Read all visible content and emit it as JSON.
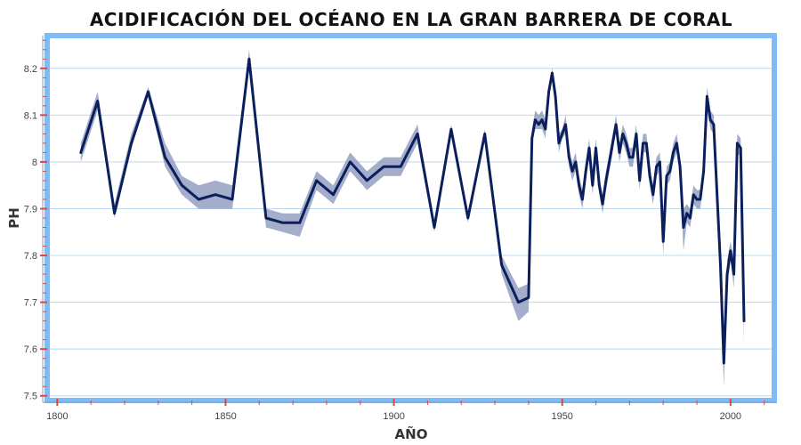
{
  "chart_data": {
    "type": "line",
    "title": "ACIDIFICACIÓN DEL OCÉANO EN LA GRAN BARRERA DE CORAL",
    "xlabel": "AÑO",
    "ylabel": "PH",
    "xlim": [
      1797,
      2013
    ],
    "ylim": [
      7.49,
      8.27
    ],
    "x_ticks": [
      1800,
      1850,
      1900,
      1950,
      2000
    ],
    "y_ticks": [
      7.5,
      7.6,
      7.7,
      7.8,
      7.9,
      8,
      8.1,
      8.2
    ],
    "y_tick_labels": [
      "7.5",
      "7.6",
      "7.7",
      "7.8",
      "7.9",
      "8",
      "8.1",
      "8.2"
    ],
    "grid": "horizontal",
    "colors": {
      "line": "#0b1f5c",
      "band": "#8592b8",
      "frame": "#7ebcf7",
      "grid": "#bcd8ee",
      "tick_marks": "#e0473f"
    },
    "series": [
      {
        "x": [
          1807,
          1812,
          1817,
          1822,
          1827,
          1832,
          1837,
          1842,
          1847,
          1852,
          1857,
          1862,
          1867,
          1872,
          1877,
          1882,
          1887,
          1892,
          1897,
          1902,
          1907,
          1912,
          1917,
          1922,
          1927,
          1932,
          1937,
          1940,
          1941,
          1942,
          1943,
          1944,
          1945,
          1946,
          1947,
          1948,
          1949,
          1950,
          1951,
          1952,
          1953,
          1954,
          1955,
          1956,
          1957,
          1958,
          1959,
          1960,
          1961,
          1962,
          1963,
          1964,
          1965,
          1966,
          1967,
          1968,
          1969,
          1970,
          1971,
          1972,
          1973,
          1974,
          1975,
          1976,
          1977,
          1978,
          1979,
          1980,
          1981,
          1982,
          1983,
          1984,
          1985,
          1986,
          1987,
          1988,
          1989,
          1990,
          1991,
          1992,
          1993,
          1994,
          1995,
          1996,
          1997,
          1998,
          1999,
          2000,
          2001,
          2002,
          2003,
          2004
        ],
        "y": [
          8.02,
          8.13,
          7.89,
          8.04,
          8.15,
          8.01,
          7.95,
          7.92,
          7.93,
          7.92,
          8.22,
          7.88,
          7.87,
          7.87,
          7.96,
          7.93,
          8.0,
          7.96,
          7.99,
          7.99,
          8.06,
          7.86,
          8.07,
          7.88,
          8.06,
          7.78,
          7.7,
          7.71,
          8.05,
          8.09,
          8.08,
          8.09,
          8.07,
          8.15,
          8.19,
          8.14,
          8.04,
          8.06,
          8.08,
          8.01,
          7.98,
          8.0,
          7.95,
          7.92,
          7.98,
          8.03,
          7.95,
          8.03,
          7.95,
          7.91,
          7.96,
          8.0,
          8.04,
          8.08,
          8.02,
          8.06,
          8.04,
          8.01,
          8.01,
          8.06,
          7.96,
          8.04,
          8.04,
          7.97,
          7.93,
          7.99,
          8.0,
          7.83,
          7.97,
          7.98,
          8.02,
          8.04,
          7.99,
          7.86,
          7.89,
          7.88,
          7.93,
          7.92,
          7.92,
          7.98,
          8.14,
          8.09,
          8.08,
          7.93,
          7.78,
          7.57,
          7.76,
          7.81,
          7.76,
          8.04,
          8.03,
          7.66
        ],
        "lower": [
          8.0,
          8.11,
          7.88,
          8.03,
          8.14,
          7.99,
          7.93,
          7.9,
          7.9,
          7.9,
          8.2,
          7.86,
          7.85,
          7.84,
          7.94,
          7.91,
          7.98,
          7.94,
          7.97,
          7.97,
          8.04,
          7.85,
          8.06,
          7.87,
          8.05,
          7.76,
          7.66,
          7.68,
          8.04,
          8.07,
          8.07,
          8.07,
          8.05,
          8.14,
          8.18,
          8.12,
          8.02,
          8.05,
          8.06,
          7.99,
          7.96,
          7.98,
          7.93,
          7.9,
          7.96,
          8.01,
          7.93,
          8.01,
          7.93,
          7.89,
          7.94,
          7.98,
          8.02,
          8.07,
          8.0,
          8.04,
          8.02,
          7.99,
          7.99,
          8.04,
          7.94,
          8.02,
          8.02,
          7.95,
          7.91,
          7.97,
          7.98,
          7.8,
          7.95,
          7.96,
          8.0,
          8.02,
          7.97,
          7.81,
          7.87,
          7.86,
          7.91,
          7.9,
          7.9,
          7.96,
          8.12,
          8.07,
          8.06,
          7.9,
          7.75,
          7.52,
          7.73,
          7.79,
          7.73,
          8.02,
          8.01,
          7.61
        ],
        "upper": [
          8.04,
          8.15,
          7.91,
          8.06,
          8.16,
          8.04,
          7.97,
          7.95,
          7.96,
          7.95,
          8.24,
          7.9,
          7.89,
          7.89,
          7.98,
          7.95,
          8.02,
          7.98,
          8.01,
          8.01,
          8.08,
          7.87,
          8.08,
          7.89,
          8.07,
          7.8,
          7.73,
          7.74,
          8.07,
          8.11,
          8.1,
          8.11,
          8.09,
          8.16,
          8.2,
          8.16,
          8.06,
          8.07,
          8.1,
          8.03,
          8.0,
          8.02,
          7.97,
          7.94,
          8.0,
          8.05,
          7.97,
          8.05,
          7.97,
          7.93,
          7.98,
          8.02,
          8.06,
          8.1,
          8.04,
          8.08,
          8.06,
          8.03,
          8.03,
          8.08,
          7.98,
          8.06,
          8.06,
          7.99,
          7.95,
          8.01,
          8.02,
          7.86,
          7.99,
          8.0,
          8.04,
          8.06,
          8.01,
          7.9,
          7.91,
          7.9,
          7.95,
          7.94,
          7.94,
          8.0,
          8.16,
          8.11,
          8.1,
          7.96,
          7.81,
          7.62,
          7.79,
          7.83,
          7.79,
          8.06,
          8.05,
          7.71
        ]
      }
    ]
  }
}
